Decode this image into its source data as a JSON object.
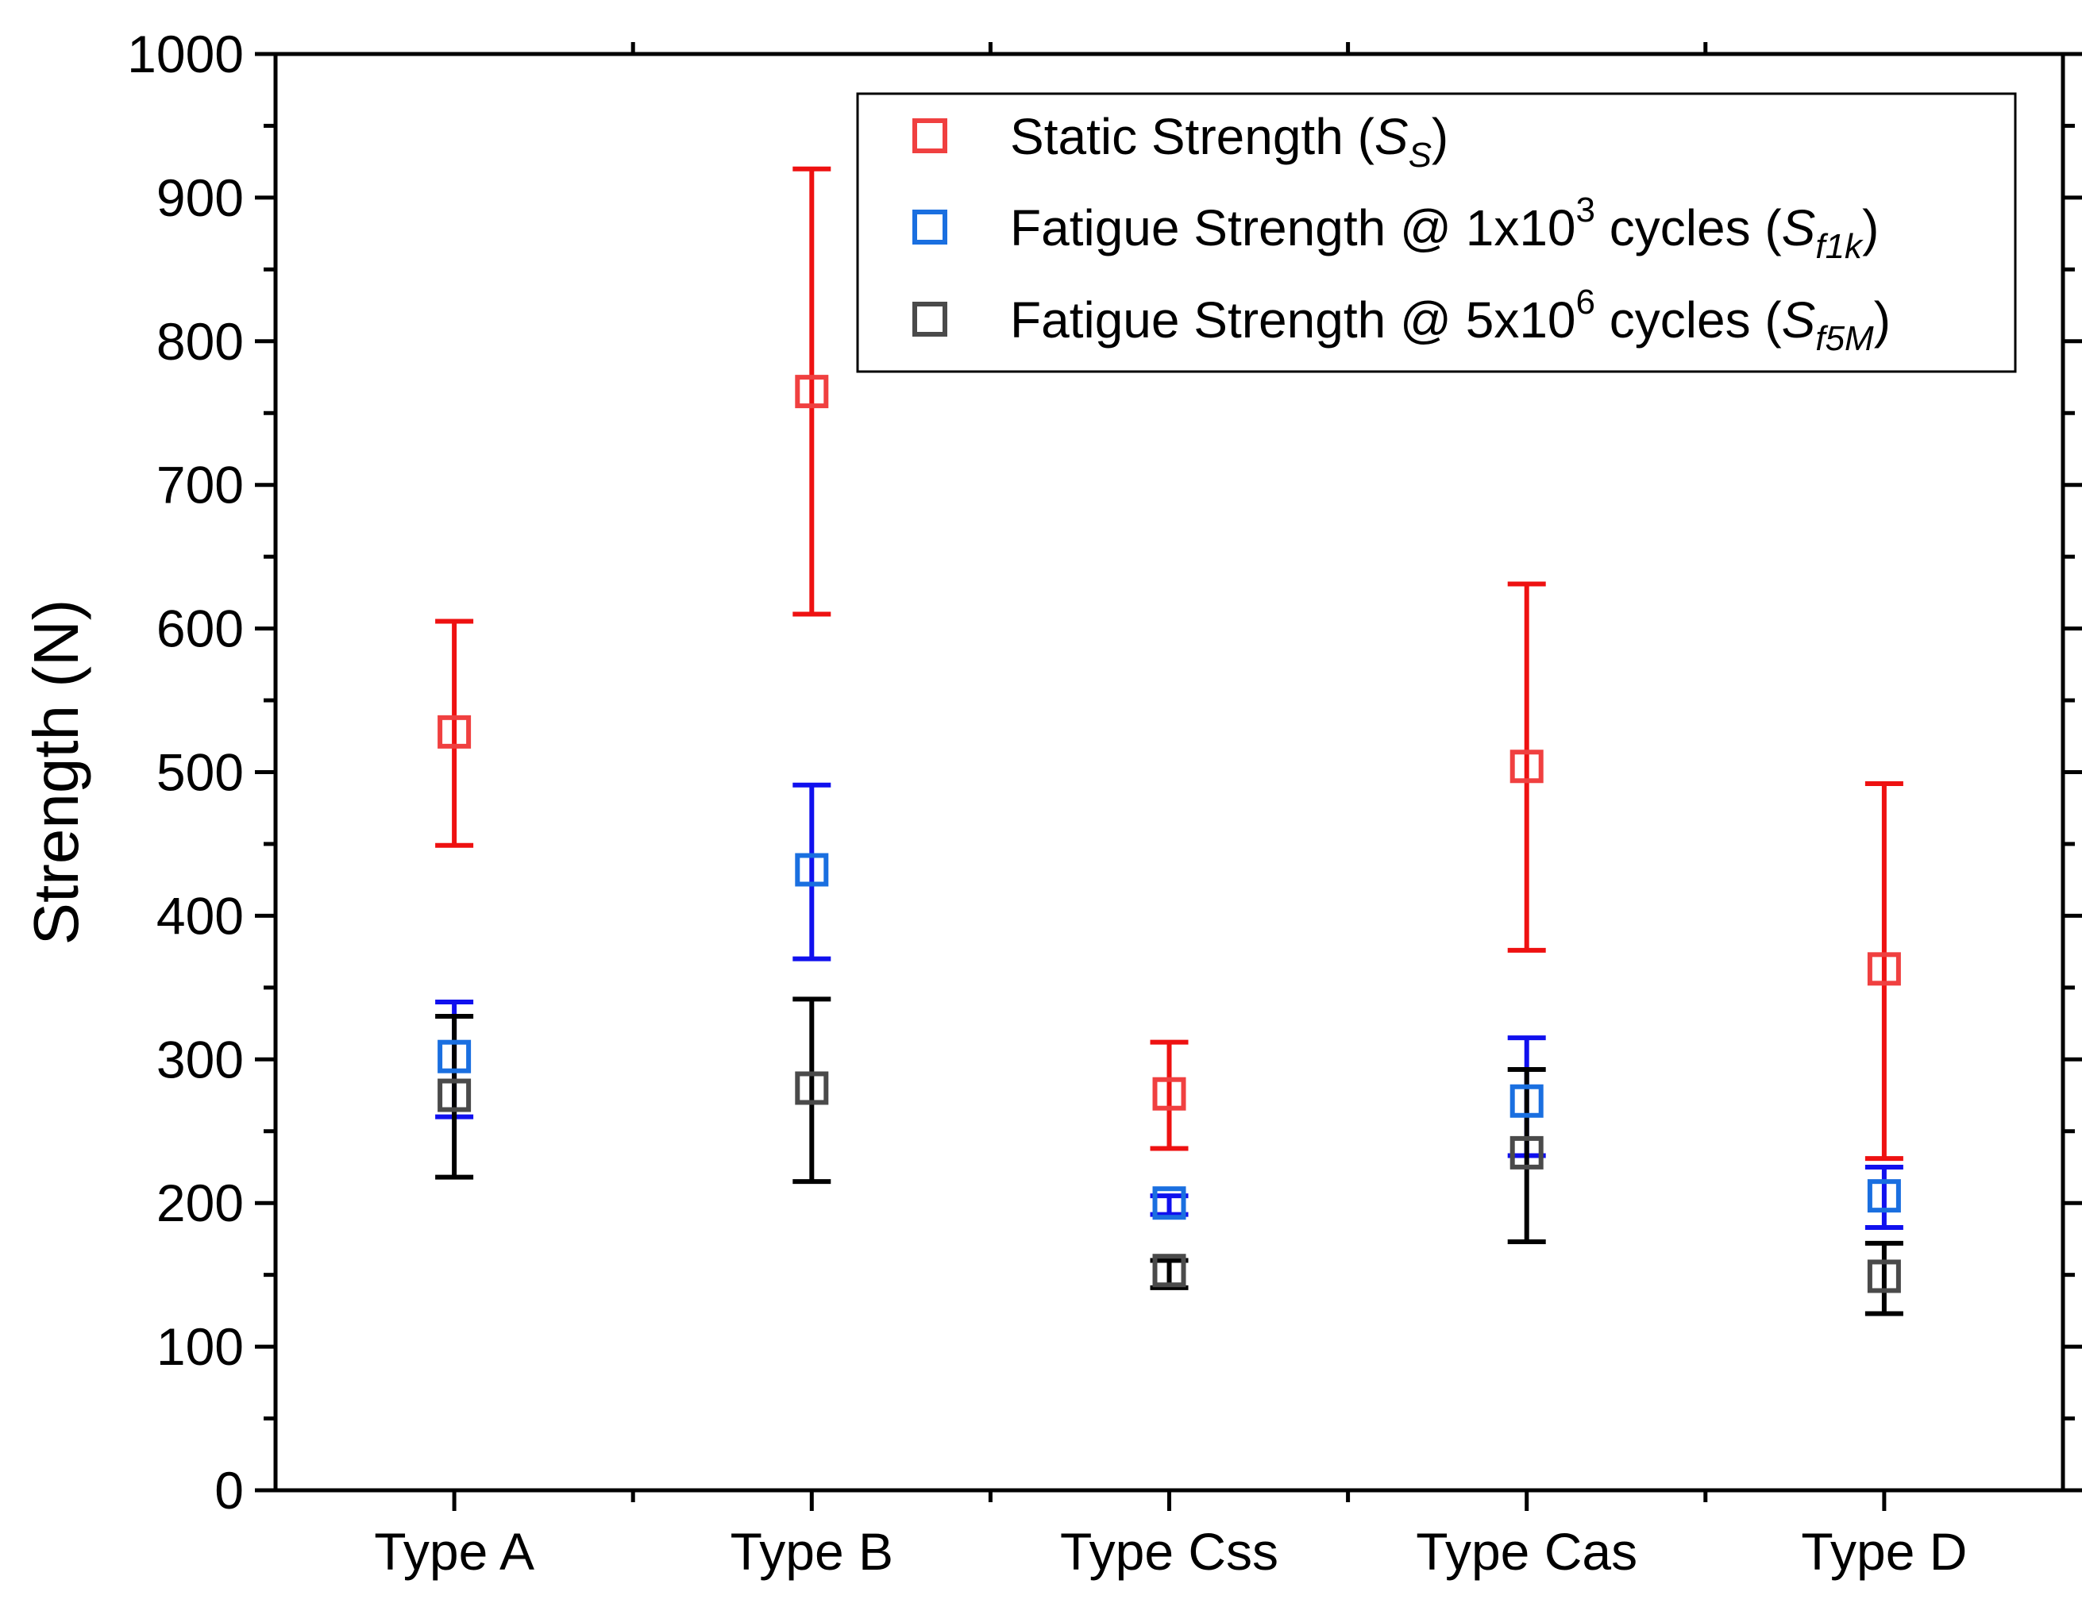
{
  "chart_data": {
    "type": "scatter",
    "title": "",
    "xlabel": "",
    "ylabel": "Strength (N)",
    "ylim": [
      0,
      1000
    ],
    "yticks": [
      0,
      100,
      200,
      300,
      400,
      500,
      600,
      700,
      800,
      900,
      1000
    ],
    "grid": false,
    "legend_position": "top-right",
    "categories": [
      "Type A",
      "Type B",
      "Type Css",
      "Type Cas",
      "Type D"
    ],
    "series": [
      {
        "name": "Static Strength",
        "legend_prefix": "Static Strength (",
        "legend_symbol": "S",
        "legend_subscript": "S",
        "legend_suffix": ")",
        "marker_color": "#f04040",
        "error_color": "#ee1111",
        "values": [
          528,
          765,
          276,
          504,
          363
        ],
        "err_low": [
          449,
          610,
          238,
          376,
          231
        ],
        "err_high": [
          605,
          920,
          312,
          631,
          492
        ]
      },
      {
        "name": "Fatigue Strength @ 1x10^3 cycles",
        "legend_prefix": "Fatigue Strength @ 1x10",
        "legend_superscript": "3",
        "legend_middle": " cycles (",
        "legend_symbol": "S",
        "legend_subscript": "f1k",
        "legend_suffix": ")",
        "marker_color": "#1a6fe0",
        "error_color": "#1010ee",
        "values": [
          302,
          432,
          200,
          271,
          205
        ],
        "err_low": [
          260,
          370,
          192,
          233,
          183
        ],
        "err_high": [
          340,
          491,
          205,
          315,
          225
        ]
      },
      {
        "name": "Fatigue Strength @ 5x10^6 cycles",
        "legend_prefix": "Fatigue Strength @ 5x10",
        "legend_superscript": "6",
        "legend_middle": " cycles (",
        "legend_symbol": "S",
        "legend_subscript": "f5M",
        "legend_suffix": ")",
        "marker_color": "#4a4a4a",
        "error_color": "#000000",
        "values": [
          275,
          280,
          153,
          235,
          149
        ],
        "err_low": [
          218,
          215,
          141,
          173,
          123
        ],
        "err_high": [
          330,
          342,
          160,
          293,
          172
        ]
      }
    ]
  }
}
